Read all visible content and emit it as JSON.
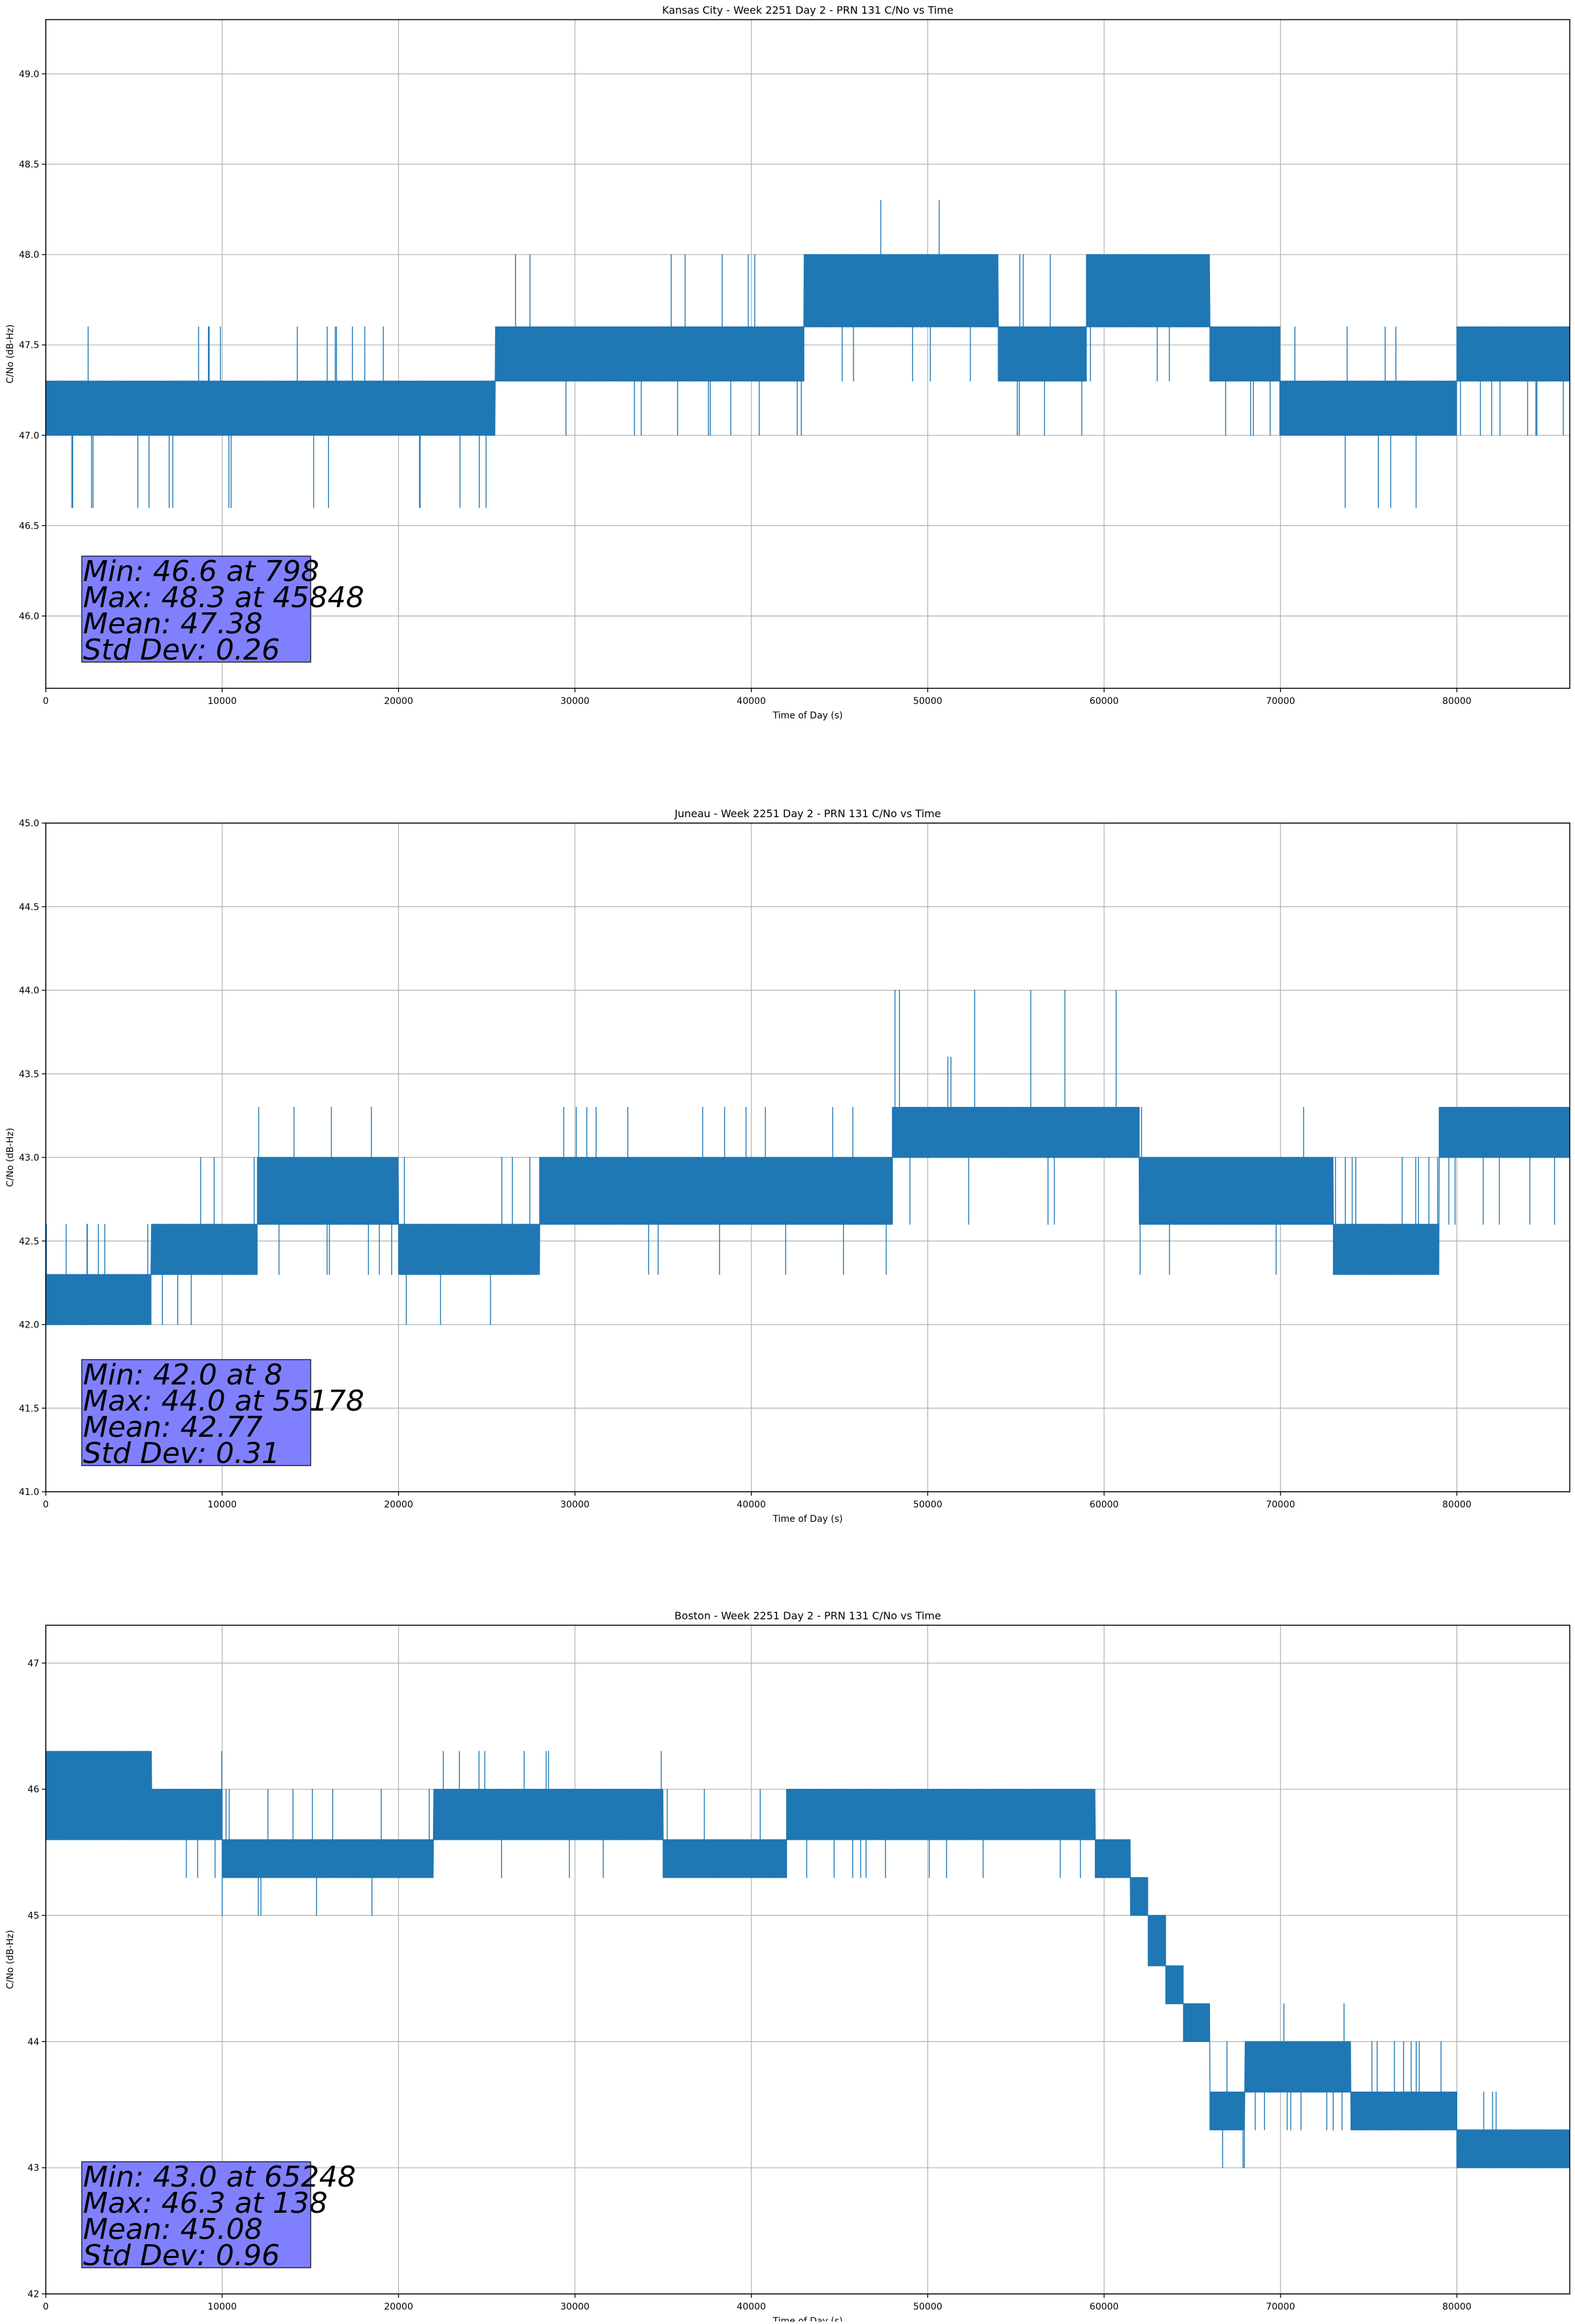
{
  "chart_data": [
    {
      "type": "line",
      "title": "Kansas City - Week 2251 Day 2 - PRN 131 C/No vs Time",
      "xlabel": "Time of Day (s)",
      "ylabel": "C/No (dB-Hz)",
      "xlim": [
        0,
        86400
      ],
      "ylim": [
        45.6,
        49.3
      ],
      "xticks": [
        0,
        10000,
        20000,
        30000,
        40000,
        50000,
        60000,
        70000,
        80000
      ],
      "yticks": [
        46.0,
        46.5,
        47.0,
        47.5,
        48.0,
        48.5,
        49.0
      ],
      "ytick_labels": [
        "46.0",
        "46.5",
        "47.0",
        "47.5",
        "48.0",
        "48.5",
        "49.0"
      ],
      "grid": true,
      "series_color": "#1f77b4",
      "segments": [
        {
          "x": [
            0,
            8000
          ],
          "levels": [
            47.0,
            47.3
          ],
          "spikes": [
            47.6,
            46.6
          ]
        },
        {
          "x": [
            8000,
            10000
          ],
          "levels": [
            47.0,
            47.3
          ],
          "spikes": [
            47.6
          ]
        },
        {
          "x": [
            10000,
            12500
          ],
          "levels": [
            47.0,
            47.3
          ],
          "spikes": [
            46.6
          ]
        },
        {
          "x": [
            12500,
            25500
          ],
          "levels": [
            47.0,
            47.3
          ],
          "spikes": [
            47.6,
            46.6
          ]
        },
        {
          "x": [
            25500,
            43000
          ],
          "levels": [
            47.3,
            47.6
          ],
          "spikes": [
            48.0,
            47.0
          ]
        },
        {
          "x": [
            43000,
            54000
          ],
          "levels": [
            47.6,
            48.0
          ],
          "spikes": [
            48.3,
            47.3
          ]
        },
        {
          "x": [
            54000,
            59000
          ],
          "levels": [
            47.3,
            47.6
          ],
          "spikes": [
            48.0,
            47.0
          ]
        },
        {
          "x": [
            59000,
            66000
          ],
          "levels": [
            47.6,
            48.0
          ],
          "spikes": [
            47.3
          ]
        },
        {
          "x": [
            66000,
            70000
          ],
          "levels": [
            47.3,
            47.6
          ],
          "spikes": [
            47.0
          ]
        },
        {
          "x": [
            70000,
            80000
          ],
          "levels": [
            47.0,
            47.3
          ],
          "spikes": [
            47.6,
            46.6
          ]
        },
        {
          "x": [
            80000,
            86400
          ],
          "levels": [
            47.3,
            47.6
          ],
          "spikes": [
            47.0
          ]
        }
      ],
      "stats": {
        "min": "Min: 46.6 at 798",
        "max": "Max: 48.3 at 45848",
        "mean": "Mean: 47.38",
        "std": "Std Dev: 0.26"
      }
    },
    {
      "type": "line",
      "title": "Juneau - Week 2251 Day 2 - PRN 131 C/No vs Time",
      "xlabel": "Time of Day (s)",
      "ylabel": "C/No (dB-Hz)",
      "xlim": [
        0,
        86400
      ],
      "ylim": [
        41.0,
        45.0
      ],
      "xticks": [
        0,
        10000,
        20000,
        30000,
        40000,
        50000,
        60000,
        70000,
        80000
      ],
      "yticks": [
        41.0,
        41.5,
        42.0,
        42.5,
        43.0,
        43.5,
        44.0,
        44.5,
        45.0
      ],
      "ytick_labels": [
        "41.0",
        "41.5",
        "42.0",
        "42.5",
        "43.0",
        "43.5",
        "44.0",
        "44.5",
        "45.0"
      ],
      "grid": true,
      "series_color": "#1f77b4",
      "segments": [
        {
          "x": [
            0,
            6000
          ],
          "levels": [
            42.0,
            42.3
          ],
          "spikes": [
            42.6
          ]
        },
        {
          "x": [
            6000,
            12000
          ],
          "levels": [
            42.3,
            42.6
          ],
          "spikes": [
            43.0,
            42.0
          ]
        },
        {
          "x": [
            12000,
            20000
          ],
          "levels": [
            42.6,
            43.0
          ],
          "spikes": [
            43.3,
            42.3
          ]
        },
        {
          "x": [
            20000,
            28000
          ],
          "levels": [
            42.3,
            42.6
          ],
          "spikes": [
            43.0,
            42.0
          ]
        },
        {
          "x": [
            28000,
            48000
          ],
          "levels": [
            42.6,
            43.0
          ],
          "spikes": [
            43.3,
            42.3
          ]
        },
        {
          "x": [
            48000,
            62000
          ],
          "levels": [
            43.0,
            43.3
          ],
          "spikes": [
            43.6,
            44.0,
            42.6
          ]
        },
        {
          "x": [
            62000,
            73000
          ],
          "levels": [
            42.6,
            43.0
          ],
          "spikes": [
            43.3,
            42.3
          ]
        },
        {
          "x": [
            73000,
            79000
          ],
          "levels": [
            42.3,
            42.6
          ],
          "spikes": [
            43.0
          ]
        },
        {
          "x": [
            79000,
            86400
          ],
          "levels": [
            43.0,
            43.3
          ],
          "spikes": [
            42.6
          ]
        }
      ],
      "stats": {
        "min": "Min: 42.0 at 8",
        "max": "Max: 44.0 at 55178",
        "mean": "Mean: 42.77",
        "std": "Std Dev: 0.31"
      }
    },
    {
      "type": "line",
      "title": "Boston - Week 2251 Day 2 - PRN 131 C/No vs Time",
      "xlabel": "Time of Day (s)",
      "ylabel": "C/No (dB-Hz)",
      "xlim": [
        0,
        86400
      ],
      "ylim": [
        42.0,
        47.3
      ],
      "xticks": [
        0,
        10000,
        20000,
        30000,
        40000,
        50000,
        60000,
        70000,
        80000
      ],
      "yticks": [
        42,
        43,
        44,
        45,
        46,
        47
      ],
      "ytick_labels": [
        "42",
        "43",
        "44",
        "45",
        "46",
        "47"
      ],
      "grid": true,
      "series_color": "#1f77b4",
      "segments": [
        {
          "x": [
            0,
            6000
          ],
          "levels": [
            45.6,
            46.3
          ],
          "spikes": []
        },
        {
          "x": [
            6000,
            10000
          ],
          "levels": [
            45.6,
            46.0
          ],
          "spikes": [
            46.3,
            45.3
          ]
        },
        {
          "x": [
            10000,
            22000
          ],
          "levels": [
            45.3,
            45.6
          ],
          "spikes": [
            46.0,
            45.0
          ]
        },
        {
          "x": [
            22000,
            35000
          ],
          "levels": [
            45.6,
            46.0
          ],
          "spikes": [
            46.3,
            45.3
          ]
        },
        {
          "x": [
            35000,
            42000
          ],
          "levels": [
            45.3,
            45.6
          ],
          "spikes": [
            46.0
          ]
        },
        {
          "x": [
            42000,
            59500
          ],
          "levels": [
            45.6,
            46.0
          ],
          "spikes": [
            45.3
          ]
        },
        {
          "x": [
            59500,
            61500
          ],
          "levels": [
            45.3,
            45.6
          ],
          "spikes": []
        },
        {
          "x": [
            61500,
            62500
          ],
          "levels": [
            45.0,
            45.3
          ],
          "spikes": []
        },
        {
          "x": [
            62500,
            63500
          ],
          "levels": [
            44.6,
            45.0
          ],
          "spikes": []
        },
        {
          "x": [
            63500,
            64500
          ],
          "levels": [
            44.3,
            44.6
          ],
          "spikes": []
        },
        {
          "x": [
            64500,
            66000
          ],
          "levels": [
            44.0,
            44.3
          ],
          "spikes": []
        },
        {
          "x": [
            66000,
            68000
          ],
          "levels": [
            43.3,
            43.6
          ],
          "spikes": [
            43.0,
            44.0
          ]
        },
        {
          "x": [
            68000,
            74000
          ],
          "levels": [
            43.6,
            44.0
          ],
          "spikes": [
            44.3,
            43.3
          ]
        },
        {
          "x": [
            74000,
            80000
          ],
          "levels": [
            43.3,
            43.6
          ],
          "spikes": [
            44.0
          ]
        },
        {
          "x": [
            80000,
            86400
          ],
          "levels": [
            43.0,
            43.3
          ],
          "spikes": [
            43.6
          ]
        }
      ],
      "stats": {
        "min": "Min: 43.0 at 65248",
        "max": "Max: 46.3 at 138",
        "mean": "Mean: 45.08",
        "std": "Std Dev: 0.96"
      }
    }
  ]
}
